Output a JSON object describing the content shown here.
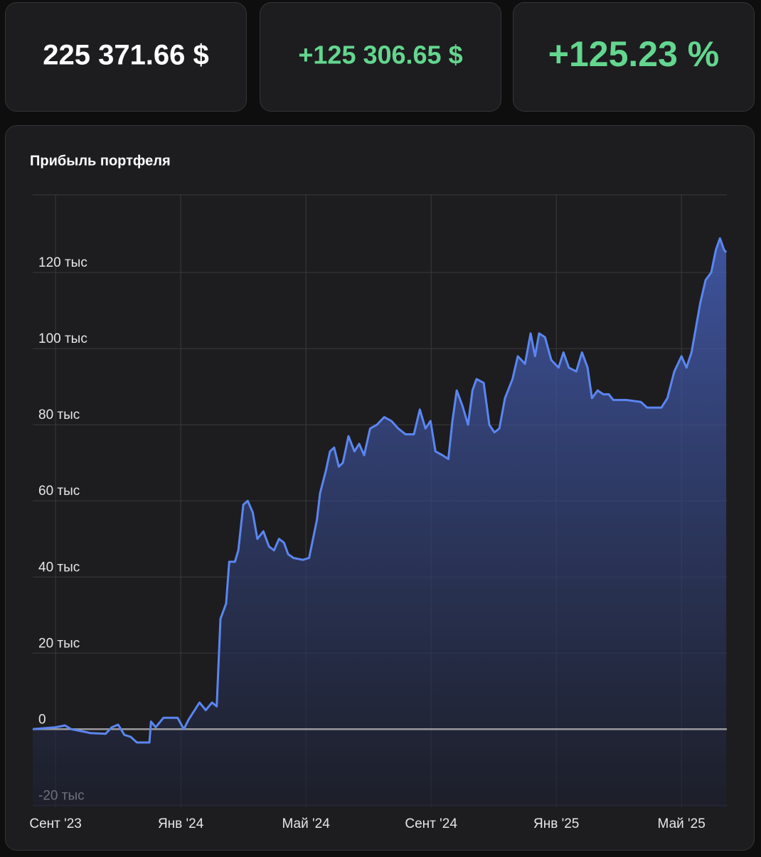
{
  "cards": [
    "225 371.66 $",
    "+125 306.65 $",
    "+125.23 %"
  ],
  "chart_data": {
    "type": "line",
    "title": "Прибыль портфеля",
    "color": "#5b86f0",
    "x": [
      -0.73,
      0,
      0.3,
      0.5,
      1,
      1.1,
      1.6,
      1.8,
      2.0,
      2.2,
      2.4,
      2.6,
      3.0,
      3.05,
      3.2,
      3.45,
      3.9,
      4.1,
      4.25,
      4.6,
      4.8,
      5.0,
      5.15,
      5.27,
      5.45,
      5.55,
      5.73,
      5.84,
      6.0,
      6.14,
      6.3,
      6.45,
      6.64,
      6.82,
      6.98,
      7.14,
      7.3,
      7.43,
      7.6,
      7.9,
      8.1,
      8.35,
      8.45,
      8.64,
      8.77,
      8.9,
      9.05,
      9.18,
      9.36,
      9.55,
      9.7,
      9.86,
      10.05,
      10.27,
      10.5,
      10.73,
      10.95,
      11.18,
      11.45,
      11.64,
      11.82,
      11.98,
      12.14,
      12.36,
      12.55,
      12.68,
      12.82,
      13.0,
      13.18,
      13.32,
      13.45,
      13.68,
      13.86,
      14.02,
      14.18,
      14.36,
      14.6,
      14.77,
      15.0,
      15.18,
      15.32,
      15.45,
      15.64,
      15.84,
      16.07,
      16.23,
      16.4,
      16.64,
      16.82,
      17.0,
      17.14,
      17.32,
      17.5,
      17.68,
      17.82,
      18.23,
      18.7,
      18.9,
      19.36,
      19.55,
      19.77,
      20.0,
      20.16,
      20.32,
      20.45,
      20.6,
      20.77,
      20.95,
      21.1,
      21.23,
      21.36,
      21.43
    ],
    "values": [
      0,
      0.5,
      1,
      0,
      -0.8,
      -1,
      -1.2,
      0.5,
      1.2,
      -1.5,
      -2,
      -3.5,
      -3.5,
      2,
      0.5,
      3,
      3,
      0,
      2.5,
      7,
      5,
      7,
      6,
      29,
      33,
      44,
      44,
      47,
      59,
      60,
      57,
      50,
      52,
      48,
      47,
      50,
      49,
      46,
      45,
      44.5,
      45,
      55,
      62,
      68,
      73,
      74,
      69,
      70,
      77,
      73,
      75,
      72,
      79,
      80,
      82,
      81,
      79,
      77.5,
      77.5,
      84,
      79,
      81,
      73,
      72,
      71,
      81,
      89,
      85,
      80,
      89,
      92,
      91,
      80,
      78,
      79,
      87,
      92,
      98,
      96,
      104,
      98,
      104,
      103,
      97,
      95,
      99,
      95,
      94,
      99,
      95,
      87,
      89,
      88,
      88,
      86.5,
      86.5,
      86,
      84.5,
      84.5,
      87,
      94,
      98,
      95,
      99,
      105,
      112,
      118,
      120,
      126,
      129,
      126,
      125.3
    ],
    "xlim": [
      -0.73,
      21.45
    ],
    "xticks": [
      {
        "value": 0,
        "label": "Сент '23"
      },
      {
        "value": 4,
        "label": "Янв '24"
      },
      {
        "value": 8,
        "label": "Май '24"
      },
      {
        "value": 12,
        "label": "Сент '24"
      },
      {
        "value": 16,
        "label": "Янв '25"
      },
      {
        "value": 20,
        "label": "Май '25"
      }
    ],
    "ylim": [
      -20.5,
      140.4
    ],
    "yticks": [
      {
        "value": -20,
        "label": "-20 тыс"
      },
      0,
      {
        "value": 20,
        "label": "20 тыс"
      },
      {
        "value": 40,
        "label": "40 тыс"
      },
      {
        "value": 60,
        "label": "60 тыс"
      },
      {
        "value": 80,
        "label": "80 тыс"
      },
      {
        "value": 100,
        "label": "100 тыс"
      },
      {
        "value": 120,
        "label": "120 тыс"
      }
    ],
    "grid": true
  }
}
